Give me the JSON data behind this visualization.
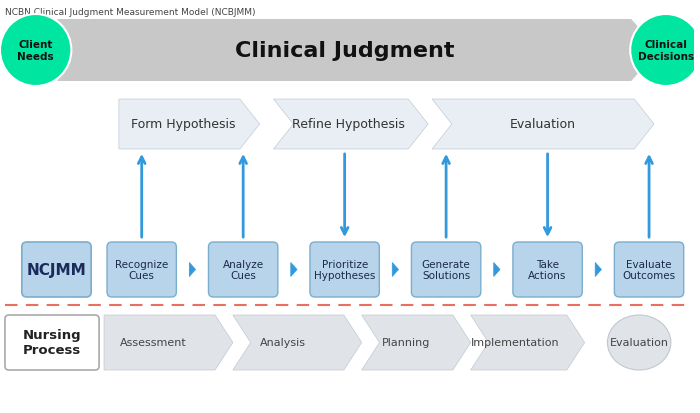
{
  "title": "NCBN Clinical Judgment Measurement Model (NCBJMM)",
  "bg_color": "#ffffff",
  "big_arrow_color": "#c8c8c8",
  "big_arrow_text": "Clinical Judgment",
  "big_arrow_text_size": 16,
  "client_needs_text": "Client\nNeeds",
  "clinical_decisions_text": "Clinical\nDecisions",
  "green_color": "#00e5a0",
  "blue_box_color": "#b8d4ea",
  "blue_box_border": "#7aaecc",
  "blue_chevron_color": "#3399dd",
  "light_chevron_color": "#e8eef4",
  "light_chevron_border": "#c0ccd8",
  "np_chevron_color": "#e0e4e8",
  "np_chevron_border": "#c0c8d0",
  "dashed_line_color": "#e87060",
  "step_boxes": [
    "NCJMM",
    "Recognize\nCues",
    "Analyze\nCues",
    "Prioritize\nHypotheses",
    "Generate\nSolutions",
    "Take\nActions",
    "Evaluate\nOutcomes"
  ],
  "hypothesis_labels": [
    "Form Hypothesis",
    "Refine Hypothesis",
    "Evaluation"
  ],
  "nursing_labels": [
    "Assessment",
    "Analysis",
    "Planning",
    "Implementation",
    "Evaluation"
  ],
  "arrow_up_indices": [
    1,
    2,
    4,
    6
  ],
  "arrow_down_indices": [
    3,
    5
  ],
  "np_label": "Nursing\nProcess",
  "subtitle_fontsize": 6.5,
  "step_fontsize": 7.5,
  "hyp_fontsize": 9,
  "nursing_fontsize": 8,
  "ncjmm_fontsize": 11
}
